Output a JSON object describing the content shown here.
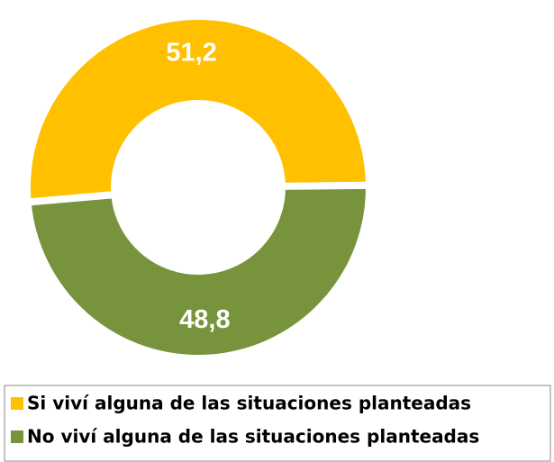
{
  "chart_data": {
    "type": "donut",
    "categories": [
      "Si viví alguna de las situaciones planteadas",
      "No viví alguna de las situaciones planteadas"
    ],
    "values": [
      51.2,
      48.8
    ],
    "value_labels": [
      "51,2",
      "48,8"
    ],
    "colors": [
      "#ffc000",
      "#77933c"
    ]
  }
}
